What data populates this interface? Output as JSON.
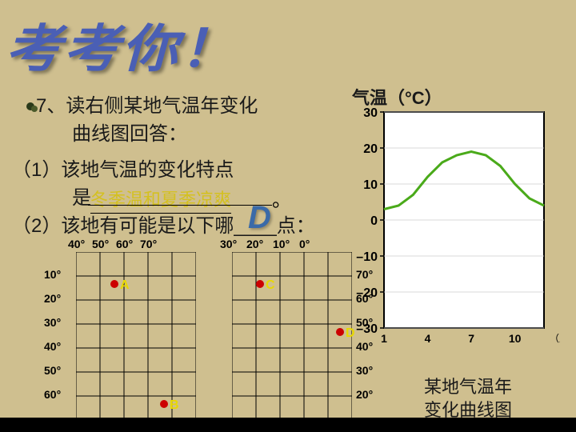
{
  "title": "考考你！",
  "question_number": "7、",
  "q_line1": "7、读右侧某地气温年变化",
  "q_line2": "曲线图回答：",
  "q_line3": "（1）该地气温的变化特点",
  "q_line4_prefix": "是",
  "q_line4_suffix": "。",
  "q_line5": "（2）该地有可能是以下哪____点：",
  "answer1": "冬季温和夏季凉爽",
  "answer2": "D",
  "chart": {
    "axis_title": "气温（°C）",
    "y_ticks": [
      30,
      20,
      10,
      0,
      -10,
      -20,
      -30
    ],
    "x_ticks": [
      1,
      4,
      7,
      10
    ],
    "x_unit": "（月）",
    "line_color": "#4aaa1a",
    "bg_color": "#ffffff",
    "border_color": "#000000",
    "grid_color": "#cccccc",
    "v_grid_color": "#cfbf8f",
    "ylim": [
      -30,
      30
    ],
    "data_months": [
      1,
      2,
      3,
      4,
      5,
      6,
      7,
      8,
      9,
      10,
      11,
      12
    ],
    "data_values": [
      3,
      4,
      7,
      12,
      16,
      18,
      19,
      18,
      15,
      10,
      6,
      4
    ],
    "bottom_caption_l1": "某地气温年",
    "bottom_caption_l2": "变化曲线图"
  },
  "maps": {
    "grid1": {
      "top_labels": [
        "40°",
        "50°",
        "60°",
        "70°"
      ],
      "left_labels": [
        "10°",
        "20°",
        "30°",
        "40°",
        "50°",
        "60°"
      ],
      "points": [
        {
          "id": "A",
          "x": 43,
          "y": 35
        },
        {
          "id": "B",
          "x": 105,
          "y": 185
        }
      ]
    },
    "grid2": {
      "top_labels": [
        "30°",
        "20°",
        "10°",
        "0°"
      ],
      "right_labels": [
        "70°",
        "60°",
        "50°",
        "40°",
        "30°",
        "20°"
      ],
      "points": [
        {
          "id": "C",
          "x": 30,
          "y": 35
        },
        {
          "id": "D",
          "x": 130,
          "y": 95
        }
      ]
    }
  }
}
